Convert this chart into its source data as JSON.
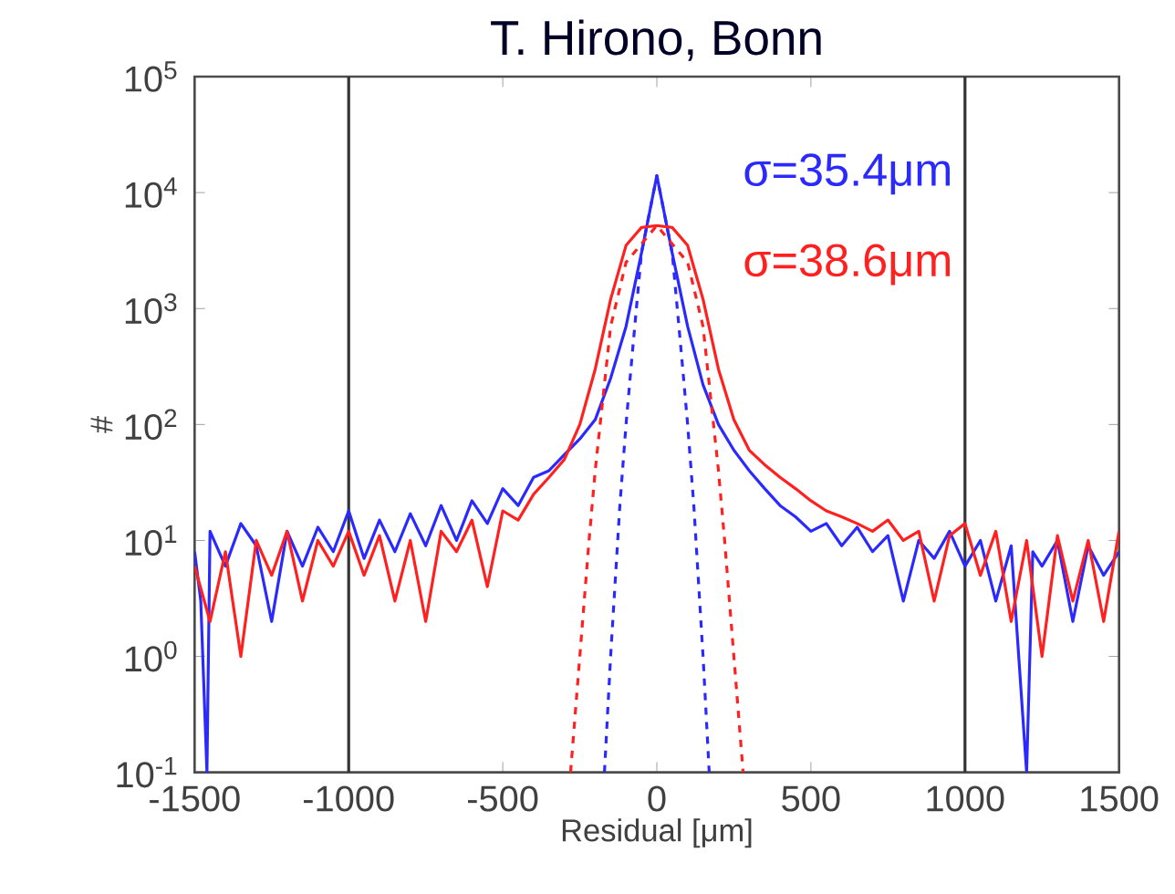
{
  "chart_data": {
    "type": "line",
    "title": "T. Hirono, Bonn",
    "xlabel": "Residual [μm]",
    "ylabel": "#",
    "log": "y",
    "grid": false,
    "xlim": [
      -1500,
      1500
    ],
    "xticks": [
      -1500,
      -1000,
      -500,
      0,
      500,
      1000,
      1500
    ],
    "ylim": [
      0.1,
      100000
    ],
    "yticks": [
      {
        "value": 0.1,
        "label": "10$^{-1}$"
      },
      {
        "value": 1,
        "label": "10$^{0}$"
      },
      {
        "value": 10,
        "label": "10$^{1}$"
      },
      {
        "value": 100,
        "label": "10$^{2}$"
      },
      {
        "value": 1000,
        "label": "10$^{3}$"
      },
      {
        "value": 10000,
        "label": "10$^{4}$"
      },
      {
        "value": 100000,
        "label": "10$^{5}$"
      }
    ],
    "ref_lines": [
      {
        "axis": "x",
        "value": -1000,
        "color": "#333333"
      },
      {
        "axis": "x",
        "value": 1000,
        "color": "#333333"
      }
    ],
    "series": [
      {
        "name": "σ=35.4μm",
        "color": "#2a2aff",
        "line_style": "solid",
        "x": [
          -1500,
          -1480,
          -1460,
          -1450,
          -1400,
          -1350,
          -1300,
          -1250,
          -1200,
          -1150,
          -1100,
          -1050,
          -1000,
          -950,
          -900,
          -850,
          -800,
          -750,
          -700,
          -650,
          -600,
          -550,
          -500,
          -450,
          -400,
          -350,
          -300,
          -250,
          -200,
          -150,
          -100,
          -50,
          0,
          50,
          100,
          150,
          200,
          250,
          300,
          350,
          400,
          450,
          500,
          550,
          600,
          650,
          700,
          750,
          800,
          850,
          900,
          950,
          1000,
          1050,
          1100,
          1150,
          1200,
          1220,
          1250,
          1300,
          1350,
          1400,
          1450,
          1500
        ],
        "values": [
          8,
          3,
          0.1,
          12,
          6,
          14,
          9,
          2,
          12,
          6,
          13,
          8,
          18,
          7,
          15,
          8,
          17,
          9,
          20,
          10,
          22,
          14,
          28,
          20,
          35,
          40,
          55,
          75,
          110,
          250,
          700,
          3000,
          14000,
          3000,
          700,
          220,
          100,
          60,
          40,
          28,
          20,
          16,
          12,
          14,
          9,
          13,
          8,
          11,
          3,
          10,
          7,
          12,
          6,
          10,
          3,
          9,
          0.1,
          8,
          6,
          10,
          2,
          9,
          5,
          8
        ]
      },
      {
        "name": "σ=38.6μm",
        "color": "#ff2020",
        "line_style": "solid",
        "x": [
          -1500,
          -1450,
          -1400,
          -1350,
          -1300,
          -1250,
          -1200,
          -1150,
          -1100,
          -1050,
          -1000,
          -950,
          -900,
          -850,
          -800,
          -750,
          -700,
          -650,
          -600,
          -550,
          -500,
          -450,
          -400,
          -350,
          -300,
          -250,
          -200,
          -150,
          -100,
          -50,
          0,
          50,
          100,
          150,
          200,
          250,
          300,
          350,
          400,
          450,
          500,
          550,
          600,
          650,
          700,
          750,
          800,
          850,
          900,
          950,
          1000,
          1050,
          1100,
          1150,
          1200,
          1250,
          1300,
          1350,
          1400,
          1450,
          1500
        ],
        "values": [
          6,
          2,
          8,
          1,
          10,
          5,
          12,
          3,
          10,
          6,
          12,
          5,
          11,
          3,
          10,
          2,
          12,
          8,
          15,
          4,
          18,
          15,
          25,
          35,
          50,
          100,
          300,
          1200,
          3500,
          5000,
          5200,
          5000,
          3500,
          1200,
          300,
          110,
          60,
          45,
          35,
          28,
          22,
          18,
          16,
          14,
          12,
          15,
          10,
          12,
          3,
          11,
          14,
          5,
          12,
          2,
          10,
          1,
          11,
          3,
          10,
          2,
          12
        ]
      },
      {
        "color": "#2a2aff",
        "line_style": "dashed",
        "x": [
          -170,
          -150,
          -120,
          -100,
          -80,
          -50,
          0,
          50,
          80,
          100,
          120,
          150,
          170
        ],
        "values": [
          0.1,
          1,
          20,
          100,
          400,
          3000,
          14000,
          3000,
          400,
          100,
          20,
          1,
          0.1
        ]
      },
      {
        "color": "#ff2020",
        "line_style": "dashed",
        "x": [
          -280,
          -250,
          -220,
          -200,
          -150,
          -100,
          0,
          100,
          150,
          200,
          220,
          250,
          280
        ],
        "values": [
          0.1,
          1,
          10,
          40,
          700,
          2500,
          5200,
          2500,
          700,
          40,
          10,
          1,
          0.1
        ]
      }
    ]
  }
}
